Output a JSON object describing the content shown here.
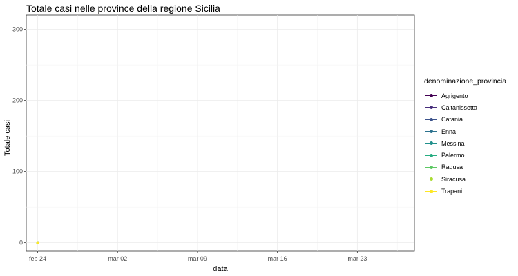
{
  "chart_data": {
    "type": "line",
    "title": "Totale casi nelle province della regione Sicilia",
    "xlabel": "data",
    "ylabel": "Totale casi",
    "x_ticks": [
      "feb 24",
      "mar 02",
      "mar 09",
      "mar 16",
      "mar 23"
    ],
    "y_ticks": [
      0,
      100,
      200,
      300
    ],
    "xlim": [
      "2020-02-23",
      "2020-03-28"
    ],
    "ylim": [
      -12,
      320
    ],
    "grid": true,
    "legend": {
      "title": "denominazione_provincia",
      "position": "right"
    },
    "series": [
      {
        "name": "Agrigento",
        "color": "#440154",
        "points": [
          {
            "x": "2020-02-24",
            "y": 0
          }
        ]
      },
      {
        "name": "Caltanissetta",
        "color": "#472D7B",
        "points": [
          {
            "x": "2020-02-24",
            "y": 0
          }
        ]
      },
      {
        "name": "Catania",
        "color": "#3B528B",
        "points": [
          {
            "x": "2020-02-24",
            "y": 0
          }
        ]
      },
      {
        "name": "Enna",
        "color": "#2C728E",
        "points": [
          {
            "x": "2020-02-24",
            "y": 0
          }
        ]
      },
      {
        "name": "Messina",
        "color": "#21908C",
        "points": [
          {
            "x": "2020-02-24",
            "y": 0
          }
        ]
      },
      {
        "name": "Palermo",
        "color": "#27AD81",
        "points": [
          {
            "x": "2020-02-24",
            "y": 0
          }
        ]
      },
      {
        "name": "Ragusa",
        "color": "#5DC863",
        "points": [
          {
            "x": "2020-02-24",
            "y": 0
          }
        ]
      },
      {
        "name": "Siracusa",
        "color": "#AADC32",
        "points": [
          {
            "x": "2020-02-24",
            "y": 0
          }
        ]
      },
      {
        "name": "Trapani",
        "color": "#FDE725",
        "points": [
          {
            "x": "2020-02-24",
            "y": 0
          }
        ]
      }
    ]
  }
}
